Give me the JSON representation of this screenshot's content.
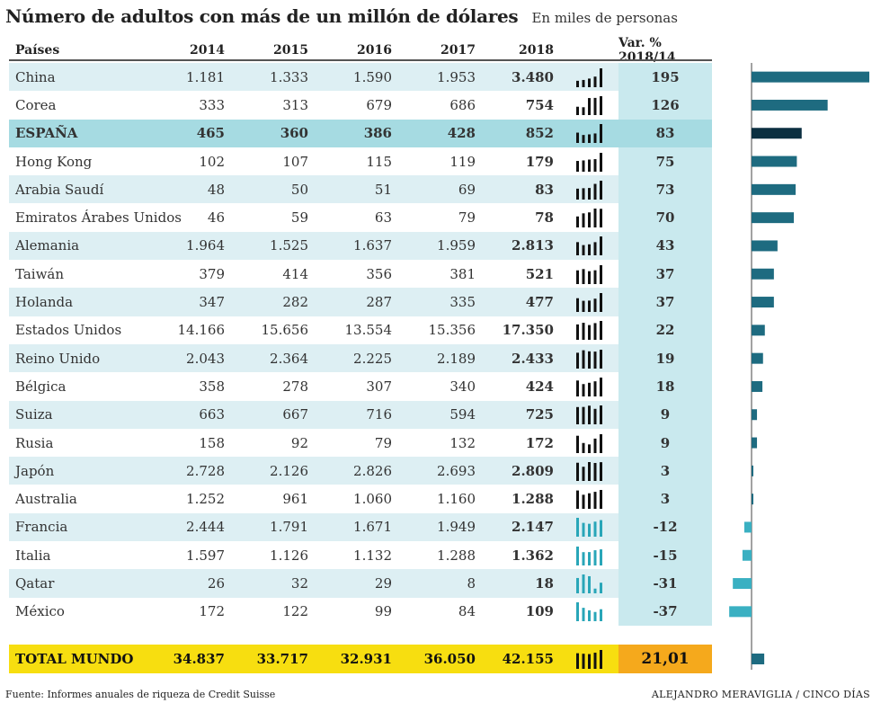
{
  "title": "Número de adultos con más de un millón de dólares",
  "subtitle": "En miles de personas",
  "headers": {
    "country": "Países",
    "years": [
      "2014",
      "2015",
      "2016",
      "2017",
      "2018"
    ],
    "var": "Var. % 2018/14"
  },
  "chart_data": {
    "type": "table",
    "title": "Número de adultos con más de un millón de dólares",
    "unit": "En miles de personas",
    "columns": [
      "2014",
      "2015",
      "2016",
      "2017",
      "2018",
      "Var. % 2018/14"
    ],
    "rows": [
      {
        "name": "China",
        "values": [
          "1.181",
          "1.333",
          "1.590",
          "1.953",
          "3.480"
        ],
        "raw": [
          1181,
          1333,
          1590,
          1953,
          3480
        ],
        "var": "195",
        "var_num": 195
      },
      {
        "name": "Corea",
        "values": [
          "333",
          "313",
          "679",
          "686",
          "754"
        ],
        "raw": [
          333,
          313,
          679,
          686,
          754
        ],
        "var": "126",
        "var_num": 126
      },
      {
        "name": "ESPAÑA",
        "values": [
          "465",
          "360",
          "386",
          "428",
          "852"
        ],
        "raw": [
          465,
          360,
          386,
          428,
          852
        ],
        "var": "83",
        "var_num": 83,
        "highlight": true
      },
      {
        "name": "Hong Kong",
        "values": [
          "102",
          "107",
          "115",
          "119",
          "179"
        ],
        "raw": [
          102,
          107,
          115,
          119,
          179
        ],
        "var": "75",
        "var_num": 75
      },
      {
        "name": "Arabia Saudí",
        "values": [
          "48",
          "50",
          "51",
          "69",
          "83"
        ],
        "raw": [
          48,
          50,
          51,
          69,
          83
        ],
        "var": "73",
        "var_num": 73
      },
      {
        "name": "Emiratos Árabes Unidos",
        "values": [
          "46",
          "59",
          "63",
          "79",
          "78"
        ],
        "raw": [
          46,
          59,
          63,
          79,
          78
        ],
        "var": "70",
        "var_num": 70
      },
      {
        "name": "Alemania",
        "values": [
          "1.964",
          "1.525",
          "1.637",
          "1.959",
          "2.813"
        ],
        "raw": [
          1964,
          1525,
          1637,
          1959,
          2813
        ],
        "var": "43",
        "var_num": 43
      },
      {
        "name": "Taiwán",
        "values": [
          "379",
          "414",
          "356",
          "381",
          "521"
        ],
        "raw": [
          379,
          414,
          356,
          381,
          521
        ],
        "var": "37",
        "var_num": 37
      },
      {
        "name": "Holanda",
        "values": [
          "347",
          "282",
          "287",
          "335",
          "477"
        ],
        "raw": [
          347,
          282,
          287,
          335,
          477
        ],
        "var": "37",
        "var_num": 37
      },
      {
        "name": "Estados Unidos",
        "values": [
          "14.166",
          "15.656",
          "13.554",
          "15.356",
          "17.350"
        ],
        "raw": [
          14166,
          15656,
          13554,
          15356,
          17350
        ],
        "var": "22",
        "var_num": 22
      },
      {
        "name": "Reino Unido",
        "values": [
          "2.043",
          "2.364",
          "2.225",
          "2.189",
          "2.433"
        ],
        "raw": [
          2043,
          2364,
          2225,
          2189,
          2433
        ],
        "var": "19",
        "var_num": 19
      },
      {
        "name": "Bélgica",
        "values": [
          "358",
          "278",
          "307",
          "340",
          "424"
        ],
        "raw": [
          358,
          278,
          307,
          340,
          424
        ],
        "var": "18",
        "var_num": 18
      },
      {
        "name": "Suiza",
        "values": [
          "663",
          "667",
          "716",
          "594",
          "725"
        ],
        "raw": [
          663,
          667,
          716,
          594,
          725
        ],
        "var": "9",
        "var_num": 9
      },
      {
        "name": "Rusia",
        "values": [
          "158",
          "92",
          "79",
          "132",
          "172"
        ],
        "raw": [
          158,
          92,
          79,
          132,
          172
        ],
        "var": "9",
        "var_num": 9
      },
      {
        "name": "Japón",
        "values": [
          "2.728",
          "2.126",
          "2.826",
          "2.693",
          "2.809"
        ],
        "raw": [
          2728,
          2126,
          2826,
          2693,
          2809
        ],
        "var": "3",
        "var_num": 3
      },
      {
        "name": "Australia",
        "values": [
          "1.252",
          "961",
          "1.060",
          "1.160",
          "1.288"
        ],
        "raw": [
          1252,
          961,
          1060,
          1160,
          1288
        ],
        "var": "3",
        "var_num": 3
      },
      {
        "name": "Francia",
        "values": [
          "2.444",
          "1.791",
          "1.671",
          "1.949",
          "2.147"
        ],
        "raw": [
          2444,
          1791,
          1671,
          1949,
          2147
        ],
        "var": "-12",
        "var_num": -12
      },
      {
        "name": "Italia",
        "values": [
          "1.597",
          "1.126",
          "1.132",
          "1.288",
          "1.362"
        ],
        "raw": [
          1597,
          1126,
          1132,
          1288,
          1362
        ],
        "var": "-15",
        "var_num": -15
      },
      {
        "name": "Qatar",
        "values": [
          "26",
          "32",
          "29",
          "8",
          "18"
        ],
        "raw": [
          26,
          32,
          29,
          8,
          18
        ],
        "var": "-31",
        "var_num": -31
      },
      {
        "name": "México",
        "values": [
          "172",
          "122",
          "99",
          "84",
          "109"
        ],
        "raw": [
          172,
          122,
          99,
          84,
          109
        ],
        "var": "-37",
        "var_num": -37
      }
    ],
    "total": {
      "name": "TOTAL MUNDO",
      "values": [
        "34.837",
        "33.717",
        "32.931",
        "36.050",
        "42.155"
      ],
      "raw": [
        34837,
        33717,
        32931,
        36050,
        42155
      ],
      "var": "21,01",
      "var_num": 21.01
    },
    "bar_scale_max": 195
  },
  "colors": {
    "bar": "#1e6b80",
    "bar_highlight": "#0b2f40",
    "bar_negative": "#3ab0c2",
    "spark_pos": "#111111",
    "spark_neg": "#29a6b8",
    "total_bg": "#f7de10",
    "total_var_bg": "#f5a91c"
  },
  "footer": {
    "source": "Fuente: Informes anuales de riqueza de Credit Suisse",
    "credit": "ALEJANDRO MERAVIGLIA / CINCO DÍAS"
  }
}
